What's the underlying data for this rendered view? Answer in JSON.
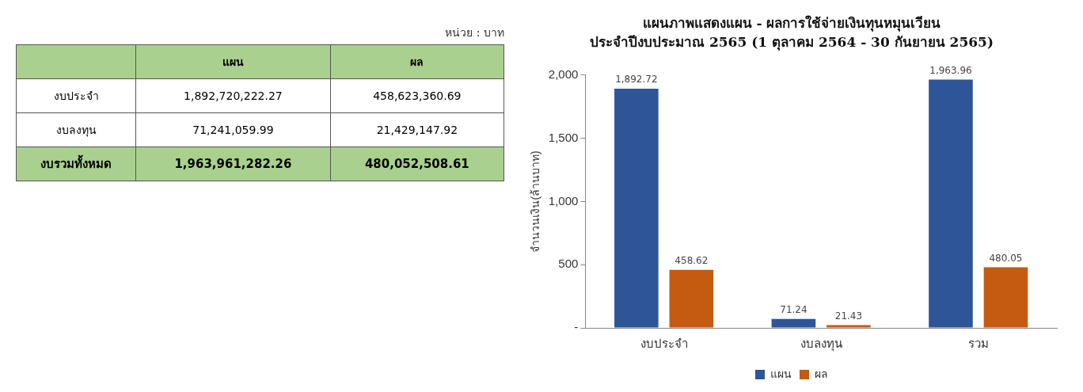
{
  "chart_data": [
    {
      "type": "other",
      "annotations": [
        "หน่วย : บาท"
      ],
      "categories": [
        "งบประจำ",
        "งบลงทุน",
        "งบรวมทั้งหมด"
      ],
      "series": [
        {
          "name": "แผน",
          "values": [
            1892720222.27,
            71241059.99,
            1963961282.26
          ],
          "value_labels": [
            "1,892,720,222.27",
            "71,241,059.99",
            "1,963,961,282.26"
          ]
        },
        {
          "name": "ผล",
          "values": [
            458623360.69,
            21429147.92,
            480052508.61
          ],
          "value_labels": [
            "458,623,360.69",
            "21,429,147.92",
            "480,052,508.61"
          ]
        }
      ]
    },
    {
      "type": "bar",
      "title": "แผนภาพแสดงแผน - ผลการใช้จ่ายเงินทุนหมุนเวียน",
      "subtitle": "ประจำปีงบประมาณ 2565 (1 ตุลาคม 2564 - 30 กันยายน 2565)",
      "ylabel": "จำนวนเงิน(ล้านบาท)",
      "categories": [
        "งบประจำ",
        "งบลงทุน",
        "รวม"
      ],
      "series": [
        {
          "name": "แผน",
          "color": "#2e5597",
          "values": [
            1892.72,
            71.24,
            1963.96
          ],
          "value_labels": [
            "1,892.72",
            "71.24",
            "1,963.96"
          ]
        },
        {
          "name": "ผล",
          "color": "#c55a11",
          "values": [
            458.62,
            21.43,
            480.05
          ],
          "value_labels": [
            "458.62",
            "21.43",
            "480.05"
          ]
        }
      ],
      "ylim": [
        0,
        2000
      ],
      "yticks": [
        {
          "value": 0,
          "label": "-"
        },
        500,
        {
          "value": 1000,
          "label": "1,000"
        },
        {
          "value": 1500,
          "label": "1,500"
        },
        {
          "value": 2000,
          "label": "2,000"
        }
      ],
      "grid": false,
      "legend": "bottom"
    }
  ]
}
